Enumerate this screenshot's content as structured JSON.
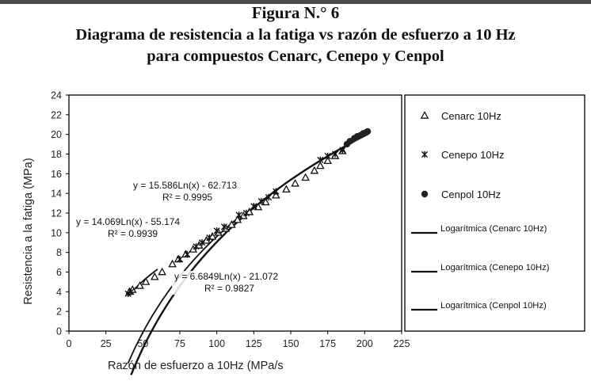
{
  "figure": {
    "label": "Figura N.° 6",
    "title_lines": [
      "Diagrama de resistencia a la fatiga vs razón de esfuerzo a 10 Hz",
      "para compuestos Cenarc, Cenepo y Cenpol"
    ]
  },
  "chart_data": {
    "type": "scatter",
    "xlabel": "Razón de esfuerzo a 10Hz (MPa/s",
    "ylabel": "Resistencia a la fatiga (MPa)",
    "xlim": [
      0,
      225
    ],
    "ylim": [
      0,
      24
    ],
    "xticks": [
      0,
      25,
      50,
      75,
      100,
      125,
      150,
      175,
      200,
      225
    ],
    "yticks": [
      0,
      2,
      4,
      6,
      8,
      10,
      12,
      14,
      16,
      18,
      20,
      22,
      24
    ],
    "grid": false,
    "legend_position": "right",
    "series": [
      {
        "name": "Cenarc 10Hz",
        "marker": "triangle",
        "x": [
          41,
          43,
          48,
          52,
          58,
          63,
          70,
          74,
          79,
          84,
          88,
          93,
          97,
          101,
          106,
          110,
          114,
          118,
          122,
          128,
          133,
          140,
          147,
          153,
          160,
          166,
          170,
          175,
          180,
          185
        ],
        "y": [
          4.0,
          4.2,
          4.6,
          5.0,
          5.5,
          6.0,
          6.8,
          7.3,
          7.8,
          8.3,
          8.7,
          9.2,
          9.6,
          10.0,
          10.4,
          10.8,
          11.3,
          11.7,
          12.1,
          12.6,
          13.1,
          13.8,
          14.4,
          15.0,
          15.6,
          16.3,
          16.8,
          17.3,
          17.8,
          18.3
        ]
      },
      {
        "name": "Cenepo 10Hz",
        "marker": "x",
        "x": [
          40,
          42,
          75,
          80,
          86,
          90,
          95,
          100,
          105,
          115,
          120,
          125,
          130,
          135,
          140,
          170,
          175,
          180,
          185
        ],
        "y": [
          3.8,
          4.0,
          7.3,
          7.8,
          8.6,
          9.0,
          9.5,
          10.2,
          10.6,
          11.8,
          12.0,
          12.7,
          13.2,
          13.6,
          14.2,
          17.4,
          17.8,
          18.0,
          18.4
        ]
      },
      {
        "name": "Cenpol 10Hz",
        "marker": "circle",
        "x": [
          188,
          190,
          193,
          195,
          197,
          199,
          201,
          202
        ],
        "y": [
          19.0,
          19.3,
          19.6,
          19.8,
          19.9,
          20.1,
          20.2,
          20.3
        ]
      }
    ],
    "trendlines": [
      {
        "name": "Logarítmica (Cenarc 10Hz)",
        "a": 15.586,
        "b": -62.713,
        "x_range": [
          42,
          202
        ]
      },
      {
        "name": "Logarítmica (Cenepo 10Hz)",
        "a": 14.069,
        "b": -55.174,
        "x_range": [
          40,
          116
        ]
      },
      {
        "name": "Logarítmica (Cenpol 10Hz)",
        "a": 6.6849,
        "b": -21.072,
        "x_range": [
          40,
          60
        ]
      }
    ],
    "annotations": [
      {
        "equation": "y = 15.586Ln(x) - 62.713",
        "r2": "R² = 0.9995"
      },
      {
        "equation": "y = 14.069Ln(x) - 55.174",
        "r2": "R² = 0.9939"
      },
      {
        "equation": "y = 6.6849Ln(x) - 21.072",
        "r2": "R² = 0.9827"
      }
    ]
  }
}
